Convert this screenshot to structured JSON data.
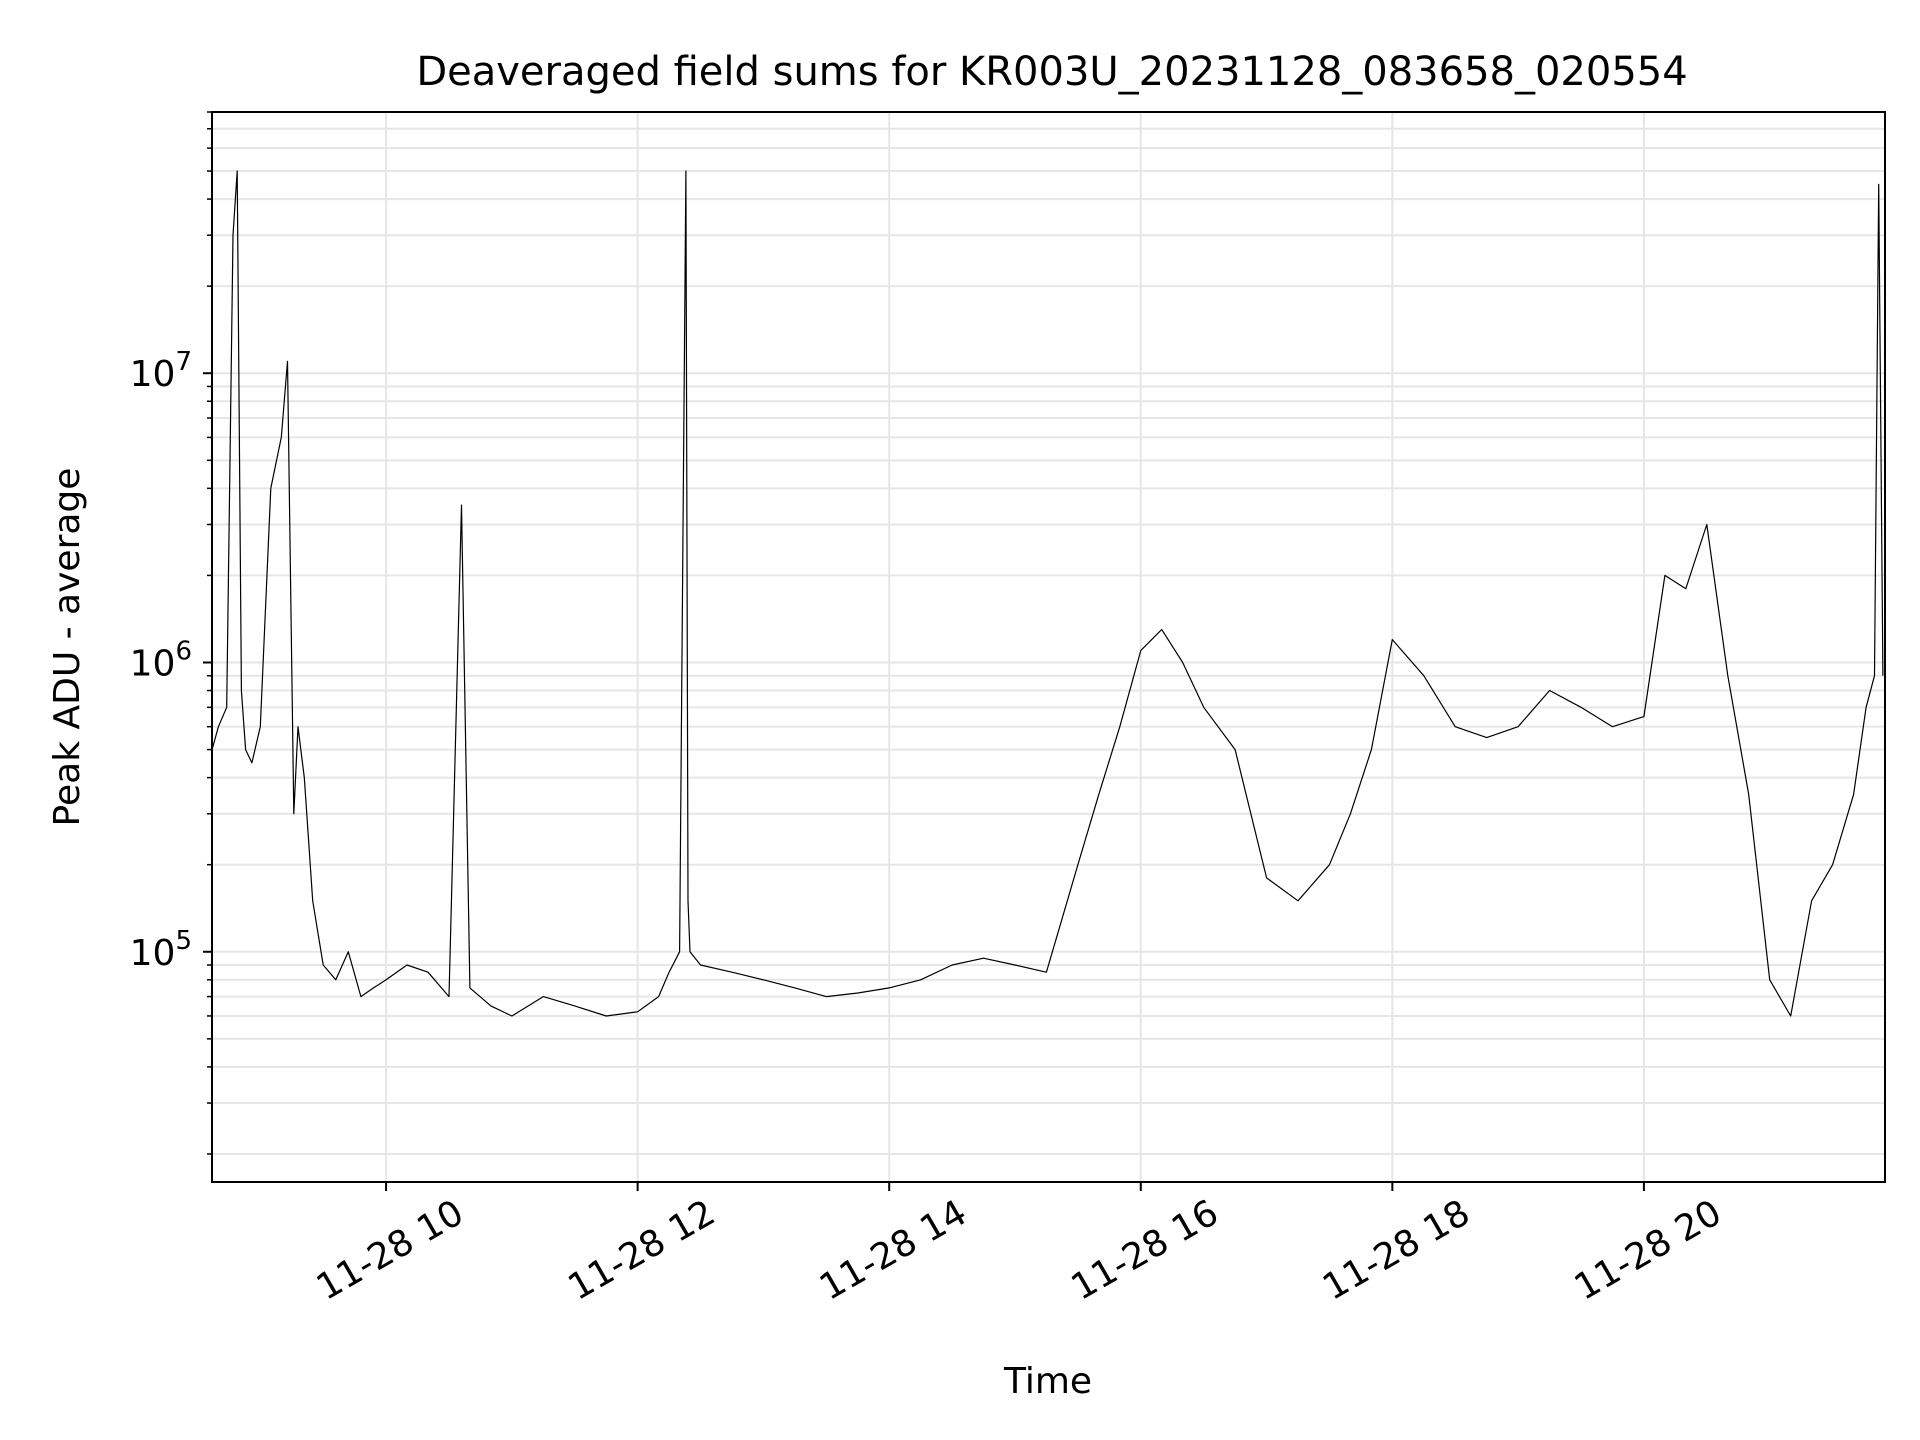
{
  "chart_data": {
    "type": "line",
    "title": "Deaveraged field sums for KR003U_20231128_083658_020554",
    "xlabel": "Time",
    "ylabel": "Peak ADU - average",
    "x_axis": {
      "kind": "datetime",
      "range": [
        "2023-11-28 08:36:58",
        "2023-11-28 21:55:00"
      ],
      "ticks": [
        {
          "value": "2023-11-28 10:00",
          "label": "11-28 10"
        },
        {
          "value": "2023-11-28 12:00",
          "label": "11-28 12"
        },
        {
          "value": "2023-11-28 14:00",
          "label": "11-28 14"
        },
        {
          "value": "2023-11-28 16:00",
          "label": "11-28 16"
        },
        {
          "value": "2023-11-28 18:00",
          "label": "11-28 18"
        },
        {
          "value": "2023-11-28 20:00",
          "label": "11-28 20"
        }
      ]
    },
    "y_axis": {
      "scale": "log",
      "range": [
        16000,
        80000000
      ],
      "ticks": [
        {
          "value": 100000,
          "base": "10",
          "exp": "5"
        },
        {
          "value": 1000000,
          "base": "10",
          "exp": "6"
        },
        {
          "value": 10000000,
          "base": "10",
          "exp": "7"
        }
      ]
    },
    "grid": true,
    "colors": {
      "line": "#000000",
      "grid": "#e6e6e6",
      "axes": "#000000"
    },
    "series": [
      {
        "x": [
          "2023-11-28 08:37",
          "2023-11-28 08:40",
          "2023-11-28 08:44",
          "2023-11-28 08:47",
          "2023-11-28 08:49",
          "2023-11-28 08:51",
          "2023-11-28 08:53",
          "2023-11-28 08:56",
          "2023-11-28 09:00",
          "2023-11-28 09:05",
          "2023-11-28 09:10",
          "2023-11-28 09:13",
          "2023-11-28 09:16",
          "2023-11-28 09:18",
          "2023-11-28 09:21",
          "2023-11-28 09:25",
          "2023-11-28 09:30",
          "2023-11-28 09:36",
          "2023-11-28 09:42",
          "2023-11-28 09:48",
          "2023-11-28 09:54",
          "2023-11-28 10:00",
          "2023-11-28 10:10",
          "2023-11-28 10:20",
          "2023-11-28 10:30",
          "2023-11-28 10:36",
          "2023-11-28 10:40",
          "2023-11-28 10:50",
          "2023-11-28 11:00",
          "2023-11-28 11:15",
          "2023-11-28 11:30",
          "2023-11-28 11:45",
          "2023-11-28 12:00",
          "2023-11-28 12:10",
          "2023-11-28 12:15",
          "2023-11-28 12:20",
          "2023-11-28 12:23",
          "2023-11-28 12:24",
          "2023-11-28 12:25",
          "2023-11-28 12:30",
          "2023-11-28 12:45",
          "2023-11-28 13:00",
          "2023-11-28 13:15",
          "2023-11-28 13:30",
          "2023-11-28 13:45",
          "2023-11-28 14:00",
          "2023-11-28 14:15",
          "2023-11-28 14:30",
          "2023-11-28 14:45",
          "2023-11-28 15:00",
          "2023-11-28 15:15",
          "2023-11-28 15:30",
          "2023-11-28 15:40",
          "2023-11-28 15:50",
          "2023-11-28 16:00",
          "2023-11-28 16:10",
          "2023-11-28 16:20",
          "2023-11-28 16:30",
          "2023-11-28 16:45",
          "2023-11-28 17:00",
          "2023-11-28 17:15",
          "2023-11-28 17:30",
          "2023-11-28 17:40",
          "2023-11-28 17:50",
          "2023-11-28 18:00",
          "2023-11-28 18:15",
          "2023-11-28 18:30",
          "2023-11-28 18:45",
          "2023-11-28 19:00",
          "2023-11-28 19:15",
          "2023-11-28 19:30",
          "2023-11-28 19:45",
          "2023-11-28 20:00",
          "2023-11-28 20:10",
          "2023-11-28 20:20",
          "2023-11-28 20:30",
          "2023-11-28 20:40",
          "2023-11-28 20:50",
          "2023-11-28 21:00",
          "2023-11-28 21:10",
          "2023-11-28 21:20",
          "2023-11-28 21:30",
          "2023-11-28 21:40",
          "2023-11-28 21:46",
          "2023-11-28 21:50",
          "2023-11-28 21:52",
          "2023-11-28 21:54"
        ],
        "y": [
          500000,
          600000,
          700000,
          30000000,
          50000000,
          800000,
          500000,
          450000,
          600000,
          4000000,
          6000000,
          11000000,
          300000,
          600000,
          400000,
          150000,
          90000,
          80000,
          100000,
          70000,
          75000,
          80000,
          90000,
          85000,
          70000,
          3500000,
          75000,
          65000,
          60000,
          70000,
          65000,
          60000,
          62000,
          70000,
          85000,
          100000,
          50000000,
          150000,
          100000,
          90000,
          85000,
          80000,
          75000,
          70000,
          72000,
          75000,
          80000,
          90000,
          95000,
          90000,
          85000,
          200000,
          350000,
          600000,
          1100000,
          1300000,
          1000000,
          700000,
          500000,
          180000,
          150000,
          200000,
          300000,
          500000,
          1200000,
          900000,
          600000,
          550000,
          600000,
          800000,
          700000,
          600000,
          650000,
          2000000,
          1800000,
          3000000,
          900000,
          350000,
          80000,
          60000,
          150000,
          200000,
          350000,
          700000,
          900000,
          45000000,
          900000
        ]
      }
    ]
  }
}
